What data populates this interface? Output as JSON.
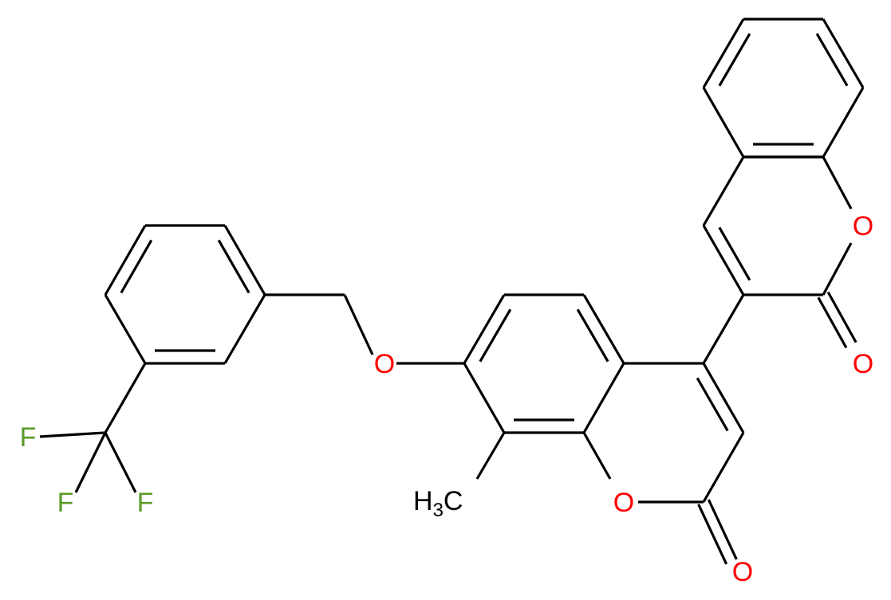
{
  "colors": {
    "bond": "#000000",
    "oxygen": "#ff0000",
    "fluorine": "#5a9a2a",
    "carbon": "#000000"
  },
  "atoms": {
    "o_ether": "O",
    "o_ring_mid": "O",
    "o_carbonyl_mid": "O",
    "o_ring_top": "O",
    "o_carbonyl_top": "O",
    "f1": "F",
    "f2": "F",
    "f3": "F",
    "methyl_h": "H",
    "methyl_sub": "3",
    "methyl_c": "C"
  }
}
